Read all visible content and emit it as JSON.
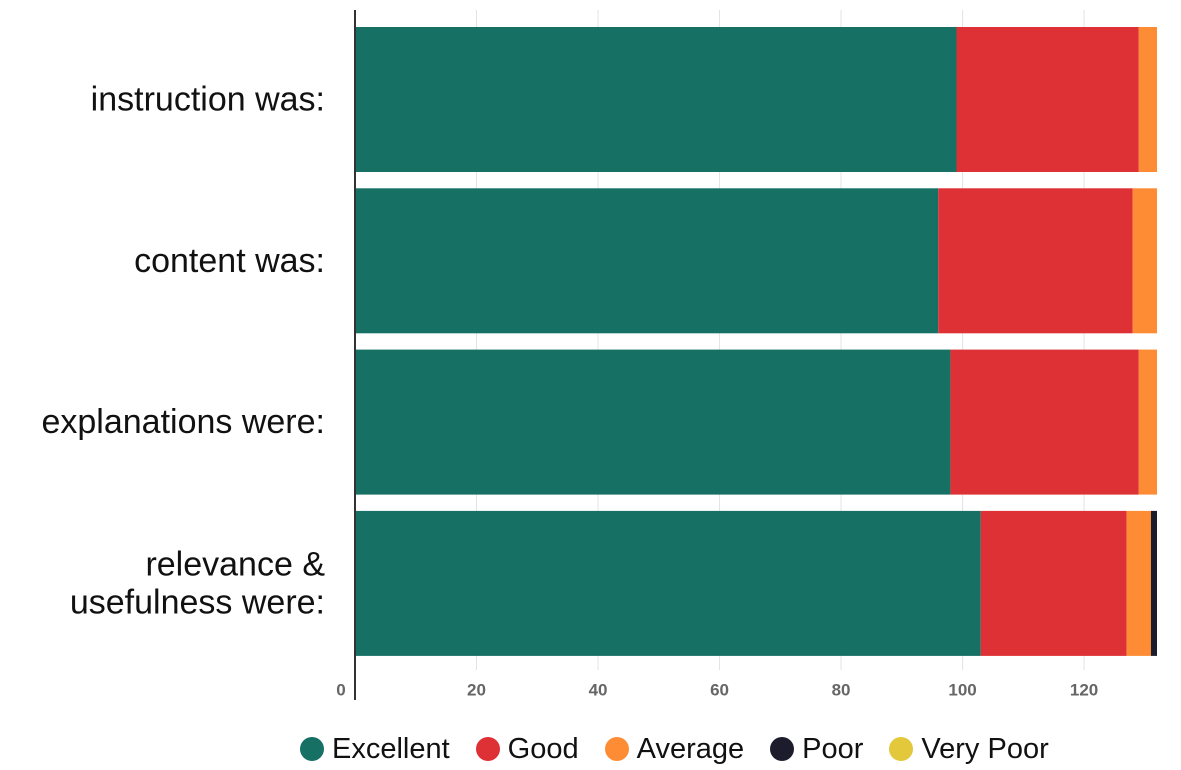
{
  "chart_data": {
    "type": "bar",
    "orientation": "horizontal",
    "stacked": true,
    "categories": [
      [
        "instruction was:"
      ],
      [
        "content was:"
      ],
      [
        "explanations were:"
      ],
      [
        "relevance &",
        "usefulness were:"
      ]
    ],
    "series": [
      {
        "name": "Excellent",
        "color": "#167064",
        "values": [
          99,
          96,
          98,
          103
        ]
      },
      {
        "name": "Good",
        "color": "#dd3136",
        "values": [
          30,
          32,
          31,
          24
        ]
      },
      {
        "name": "Average",
        "color": "#fd8c35",
        "values": [
          3,
          4,
          3,
          4
        ]
      },
      {
        "name": "Poor",
        "color": "#1c1c2c",
        "values": [
          0,
          0,
          0,
          1
        ]
      },
      {
        "name": "Very Poor",
        "color": "#e2c83a",
        "values": [
          0,
          0,
          0,
          0
        ]
      }
    ],
    "xlim": [
      0,
      132
    ],
    "xticks": [
      0,
      20,
      40,
      60,
      80,
      100,
      120
    ],
    "grid": true,
    "legend_position": "bottom"
  }
}
